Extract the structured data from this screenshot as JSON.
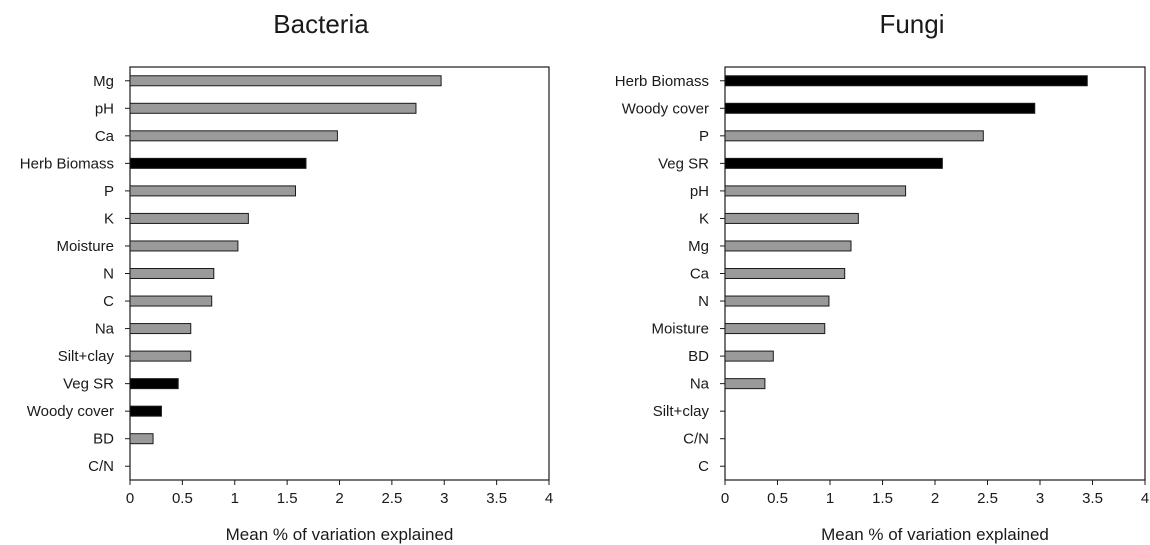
{
  "chart_data": [
    {
      "type": "bar",
      "orientation": "horizontal",
      "title": "Bacteria",
      "xlabel": "Mean % of variation explained",
      "ylabel": "",
      "xlim": [
        0,
        4
      ],
      "x_ticks": [
        "0",
        "0.5",
        "1",
        "1.5",
        "2",
        "2.5",
        "3",
        "3.5",
        "4"
      ],
      "grid": false,
      "categories": [
        "Mg",
        "pH",
        "Ca",
        "Herb Biomass",
        "P",
        "K",
        "Moisture",
        "N",
        "C",
        "Na",
        "Silt+clay",
        "Veg SR",
        "Woody cover",
        "BD",
        "C/N"
      ],
      "values": [
        2.97,
        2.73,
        1.98,
        1.68,
        1.58,
        1.13,
        1.03,
        0.8,
        0.78,
        0.58,
        0.58,
        0.46,
        0.3,
        0.22,
        0
      ],
      "bar_colors": [
        "#9a9a9a",
        "#9a9a9a",
        "#9a9a9a",
        "#000000",
        "#9a9a9a",
        "#9a9a9a",
        "#9a9a9a",
        "#9a9a9a",
        "#9a9a9a",
        "#9a9a9a",
        "#9a9a9a",
        "#000000",
        "#000000",
        "#9a9a9a",
        "#9a9a9a"
      ]
    },
    {
      "type": "bar",
      "orientation": "horizontal",
      "title": "Fungi",
      "xlabel": "Mean % of variation explained",
      "ylabel": "",
      "xlim": [
        0,
        4
      ],
      "x_ticks": [
        "0",
        "0.5",
        "1",
        "1.5",
        "2",
        "2.5",
        "3",
        "3.5",
        "4"
      ],
      "grid": false,
      "categories": [
        "Herb Biomass",
        "Woody cover",
        "P",
        "Veg SR",
        "pH",
        "K",
        "Mg",
        "Ca",
        "N",
        "Moisture",
        "BD",
        "Na",
        "Silt+clay",
        "C/N",
        "C"
      ],
      "values": [
        3.45,
        2.95,
        2.46,
        2.07,
        1.72,
        1.27,
        1.2,
        1.14,
        0.99,
        0.95,
        0.46,
        0.38,
        0,
        0,
        0
      ],
      "bar_colors": [
        "#000000",
        "#000000",
        "#9a9a9a",
        "#000000",
        "#9a9a9a",
        "#9a9a9a",
        "#9a9a9a",
        "#9a9a9a",
        "#9a9a9a",
        "#9a9a9a",
        "#9a9a9a",
        "#9a9a9a",
        "#9a9a9a",
        "#9a9a9a",
        "#9a9a9a"
      ]
    }
  ]
}
